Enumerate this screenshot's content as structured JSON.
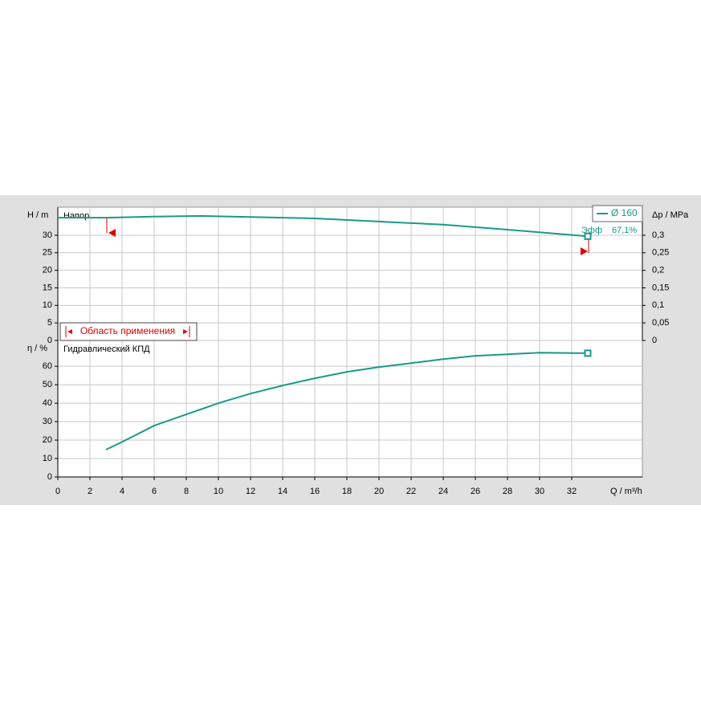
{
  "chart_data": [
    {
      "type": "line",
      "title": "Напор",
      "y_label": "H / m",
      "y2_label": "Δp / MPa",
      "x": [
        0,
        3,
        6,
        9,
        12,
        16,
        20,
        24,
        28,
        33
      ],
      "xlim": [
        0,
        36.4
      ],
      "series": [
        {
          "name": "Ø 160",
          "color": "#1a9a86",
          "values": [
            35,
            35,
            35.3,
            35.5,
            35.2,
            34.8,
            33.9,
            33,
            31.6,
            29.7
          ]
        }
      ],
      "ylim": [
        0,
        38
      ],
      "yticks": [
        0,
        5,
        10,
        15,
        20,
        25,
        30
      ],
      "y2lim": [
        0,
        0.38
      ],
      "y2ticks": [
        0,
        {
          "value": 0.05,
          "label": "0,05"
        },
        {
          "value": 0.1,
          "label": "0,1"
        },
        {
          "value": 0.15,
          "label": "0,15"
        },
        {
          "value": 0.2,
          "label": "0,2"
        },
        {
          "value": 0.25,
          "label": "0,25"
        },
        {
          "value": 0.3,
          "label": "0,3"
        }
      ],
      "annotations": [
        "Эфф",
        "67,1%",
        "Область применения"
      ],
      "grid": true
    },
    {
      "type": "line",
      "title": "Гидравлический КПД",
      "y_label": "η / %",
      "x_label": "Q / m³/h",
      "x": [
        3,
        4,
        6,
        8,
        10,
        12,
        14,
        16,
        18,
        20,
        22,
        24,
        26,
        28,
        30,
        33
      ],
      "xlim": [
        0,
        36.4
      ],
      "xticks": [
        0,
        2,
        4,
        6,
        8,
        10,
        12,
        14,
        16,
        18,
        20,
        22,
        24,
        26,
        28,
        30,
        32
      ],
      "series": [
        {
          "name": "Ø 160",
          "color": "#1a9a86",
          "values": [
            14.8,
            19,
            27.8,
            33.9,
            40,
            45.2,
            49.6,
            53.5,
            57,
            59.6,
            61.7,
            63.9,
            65.7,
            66.5,
            67.4,
            67.1
          ]
        }
      ],
      "ylim": [
        0,
        74
      ],
      "yticks": [
        0,
        10,
        20,
        30,
        40,
        50,
        60
      ],
      "grid": true
    }
  ]
}
